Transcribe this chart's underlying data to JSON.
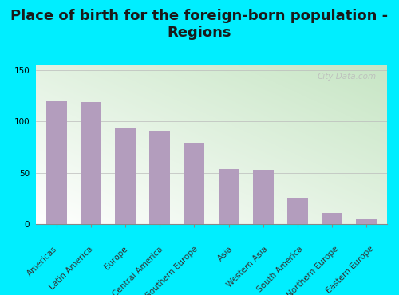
{
  "title": "Place of birth for the foreign-born population -\nRegions",
  "categories": [
    "Americas",
    "Latin America",
    "Europe",
    "Central America",
    "Southern Europe",
    "Asia",
    "Western Asia",
    "South America",
    "Northern Europe",
    "Eastern Europe"
  ],
  "values": [
    120,
    119,
    94,
    91,
    79,
    54,
    53,
    26,
    11,
    5
  ],
  "bar_color": "#b39dbd",
  "bg_outer": "#00eeff",
  "ylim": [
    0,
    155
  ],
  "yticks": [
    0,
    50,
    100,
    150
  ],
  "watermark": "City-Data.com",
  "title_fontsize": 13,
  "tick_fontsize": 7.5,
  "grad_top_left": "#c8e6c4",
  "grad_bottom_right": "#f0f8ec"
}
